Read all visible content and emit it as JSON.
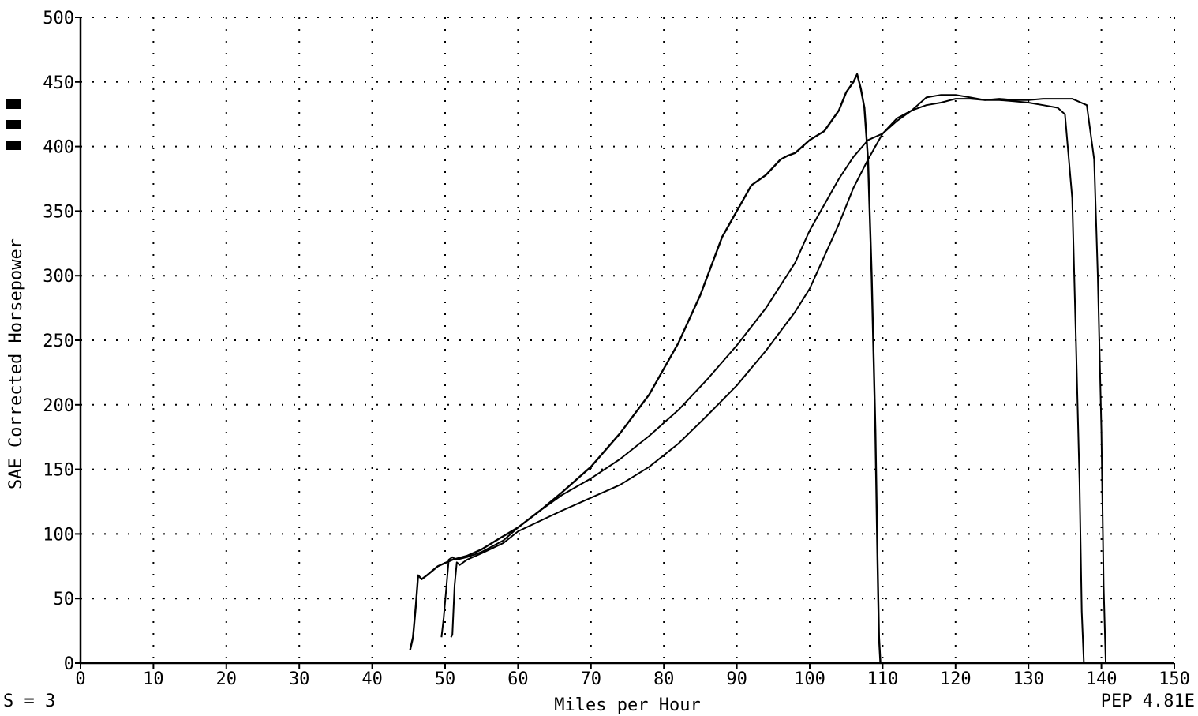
{
  "chart_data": {
    "type": "line",
    "title": "",
    "xlabel": "Miles per Hour",
    "ylabel": "SAE Corrected Horsepower",
    "xlim": [
      0,
      150
    ],
    "ylim": [
      0,
      500
    ],
    "x_ticks": [
      0,
      10,
      20,
      30,
      40,
      50,
      60,
      70,
      80,
      90,
      100,
      110,
      120,
      130,
      140,
      150
    ],
    "y_ticks": [
      0,
      50,
      100,
      150,
      200,
      250,
      300,
      350,
      400,
      450,
      500
    ],
    "grid": true,
    "grid_style": "dotted",
    "legend": "none",
    "line_color": "#000000",
    "series": [
      {
        "x": [
          45.2,
          45.6,
          46.0,
          46.3,
          46.8,
          47.5,
          49,
          51,
          53,
          55,
          57,
          60,
          63,
          66,
          70,
          74,
          78,
          82,
          85,
          88,
          90,
          92,
          94,
          96,
          97,
          98,
          100,
          102,
          104,
          105,
          106,
          106.5,
          107,
          107.5,
          108,
          108.5,
          109,
          109.3,
          109.5,
          109.7
        ],
        "y": [
          10,
          20,
          45,
          68,
          65,
          68,
          75,
          80,
          83,
          88,
          95,
          105,
          118,
          132,
          152,
          178,
          208,
          248,
          285,
          330,
          350,
          370,
          378,
          390,
          393,
          395,
          405,
          412,
          428,
          442,
          450,
          456,
          445,
          430,
          390,
          300,
          180,
          80,
          20,
          0
        ]
      },
      {
        "x": [
          49.5,
          49.8,
          50.2,
          50.5,
          51.0,
          51.5,
          53,
          55,
          58,
          60,
          63,
          66,
          70,
          74,
          78,
          82,
          86,
          90,
          94,
          98,
          100,
          102,
          104,
          106,
          108,
          110,
          112,
          114,
          116,
          118,
          120,
          122,
          124,
          126,
          128,
          130,
          132,
          134,
          135,
          136,
          136.5,
          137,
          137.3,
          137.6
        ],
        "y": [
          20,
          35,
          60,
          80,
          82,
          80,
          82,
          86,
          95,
          105,
          118,
          130,
          143,
          158,
          176,
          196,
          220,
          246,
          275,
          310,
          335,
          355,
          375,
          392,
          405,
          410,
          420,
          428,
          432,
          434,
          437,
          437,
          436,
          436,
          435,
          434,
          432,
          430,
          425,
          360,
          250,
          140,
          40,
          0
        ]
      },
      {
        "x": [
          50.8,
          51.0,
          51.3,
          51.6,
          52.0,
          53,
          55,
          58,
          60,
          63,
          66,
          70,
          74,
          78,
          82,
          86,
          90,
          94,
          98,
          100,
          102,
          104,
          106,
          108,
          110,
          112,
          114,
          116,
          118,
          120,
          122,
          124,
          126,
          128,
          130,
          132,
          134,
          136,
          138,
          139,
          139.5,
          140,
          140.3,
          140.6
        ],
        "y": [
          20,
          22,
          60,
          78,
          76,
          80,
          85,
          93,
          102,
          110,
          118,
          128,
          138,
          152,
          170,
          192,
          215,
          242,
          272,
          290,
          315,
          340,
          368,
          390,
          410,
          422,
          428,
          438,
          440,
          440,
          438,
          436,
          437,
          436,
          436,
          437,
          437,
          437,
          432,
          390,
          300,
          180,
          60,
          0
        ]
      }
    ]
  },
  "footer": {
    "left_text": "S = 3",
    "right_text": "PEP 4.81E"
  }
}
